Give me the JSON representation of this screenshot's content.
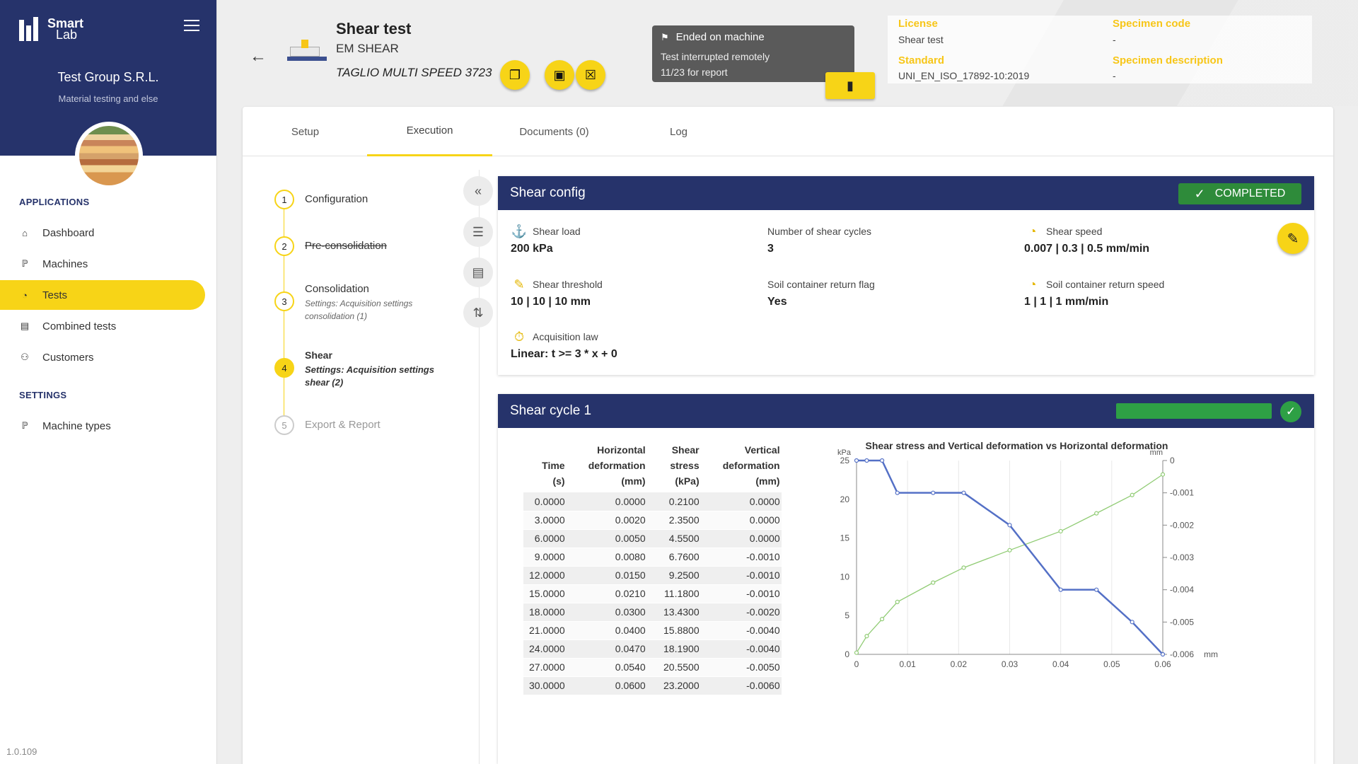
{
  "app": {
    "logo_line1": "Smart",
    "logo_line2": "Lab",
    "org_name": "Test Group S.R.L.",
    "org_sub": "Material testing and else",
    "version": "1.0.109"
  },
  "nav": {
    "section_apps": "APPLICATIONS",
    "section_settings": "SETTINGS",
    "items": [
      {
        "label": "Dashboard",
        "icon": "home-icon"
      },
      {
        "label": "Machines",
        "icon": "microscope-icon"
      },
      {
        "label": "Tests",
        "icon": "gauge-icon"
      },
      {
        "label": "Combined tests",
        "icon": "stack-icon"
      },
      {
        "label": "Customers",
        "icon": "people-icon"
      },
      {
        "label": "Machine types",
        "icon": "microscope-icon"
      }
    ]
  },
  "header": {
    "title": "Shear test",
    "type": "EM SHEAR",
    "machine": "TAGLIO MULTI SPEED 3723",
    "status_title": "Ended on machine",
    "status_line1": "Test interrupted remotely",
    "status_line2": "11/23 for report",
    "license_label": "License",
    "license_value": "Shear test",
    "standard_label": "Standard",
    "standard_value": "UNI_EN_ISO_17892-10:2019",
    "specimen_code_label": "Specimen code",
    "specimen_code_value": "-",
    "specimen_desc_label": "Specimen description",
    "specimen_desc_value": "-"
  },
  "tabs": [
    "Setup",
    "Execution",
    "Documents (0)",
    "Log"
  ],
  "steps": [
    {
      "num": "1",
      "title": "Configuration",
      "sub": ""
    },
    {
      "num": "2",
      "title": "Pre-consolidation",
      "sub": ""
    },
    {
      "num": "3",
      "title": "Consolidation",
      "sub": "Settings: Acquisition settings consolidation (1)"
    },
    {
      "num": "4",
      "title": "Shear",
      "sub": "Settings: Acquisition settings shear (2)"
    },
    {
      "num": "5",
      "title": "Export & Report",
      "sub": ""
    }
  ],
  "config": {
    "title": "Shear config",
    "status": "COMPLETED",
    "fields": [
      {
        "label": "Shear load",
        "value": "200 kPa"
      },
      {
        "label": "Number of shear cycles",
        "value": "3"
      },
      {
        "label": "Shear speed",
        "value": "0.007 | 0.3 | 0.5 mm/min"
      },
      {
        "label": "Shear threshold",
        "value": "10 | 10 | 10 mm"
      },
      {
        "label": "Soil container return flag",
        "value": "Yes"
      },
      {
        "label": "Soil container return speed",
        "value": "1 | 1 | 1 mm/min"
      },
      {
        "label": "Acquisition law",
        "value": "Linear: t >= 3 * x + 0"
      }
    ]
  },
  "cycle": {
    "title": "Shear cycle 1",
    "progress": 1.0,
    "table": {
      "headers": [
        [
          "Time",
          "(s)"
        ],
        [
          "Horizontal",
          "deformation",
          "(mm)"
        ],
        [
          "Shear",
          "stress",
          "(kPa)"
        ],
        [
          "Vertical",
          "deformation",
          "(mm)"
        ]
      ],
      "rows": [
        [
          "0.0000",
          "0.0000",
          "0.2100",
          "0.0000"
        ],
        [
          "3.0000",
          "0.0020",
          "2.3500",
          "0.0000"
        ],
        [
          "6.0000",
          "0.0050",
          "4.5500",
          "0.0000"
        ],
        [
          "9.0000",
          "0.0080",
          "6.7600",
          "-0.0010"
        ],
        [
          "12.0000",
          "0.0150",
          "9.2500",
          "-0.0010"
        ],
        [
          "15.0000",
          "0.0210",
          "11.1800",
          "-0.0010"
        ],
        [
          "18.0000",
          "0.0300",
          "13.4300",
          "-0.0020"
        ],
        [
          "21.0000",
          "0.0400",
          "15.8800",
          "-0.0040"
        ],
        [
          "24.0000",
          "0.0470",
          "18.1900",
          "-0.0040"
        ],
        [
          "27.0000",
          "0.0540",
          "20.5500",
          "-0.0050"
        ],
        [
          "30.0000",
          "0.0600",
          "23.2000",
          "-0.0060"
        ]
      ]
    }
  },
  "chart_data": {
    "type": "line",
    "title": "Shear stress and Vertical deformation vs Horizontal deformation",
    "xlabel": "mm",
    "ylabel_left": "kPa",
    "ylabel_right": "mm",
    "xlim": [
      0,
      0.06
    ],
    "ylim_left": [
      0,
      25
    ],
    "ylim_right": [
      -0.006,
      0
    ],
    "x_ticks": [
      "0",
      "0.01",
      "0.02",
      "0.03",
      "0.04",
      "0.05",
      "0.06"
    ],
    "y_left_ticks": [
      "0",
      "5",
      "10",
      "15",
      "20",
      "25"
    ],
    "y_right_ticks": [
      "0",
      "-0.001",
      "-0.002",
      "-0.003",
      "-0.004",
      "-0.005",
      "-0.006"
    ],
    "grid": true,
    "series": [
      {
        "axis": "left",
        "color": "#5470c6",
        "x": [
          0,
          0.002,
          0.005,
          0.008,
          0.015,
          0.021,
          0.03,
          0.04,
          0.047,
          0.054,
          0.06
        ],
        "values": [
          0.21,
          2.35,
          4.55,
          6.76,
          9.25,
          11.18,
          13.43,
          15.88,
          18.19,
          20.55,
          23.2
        ]
      },
      {
        "axis": "right",
        "color": "#5470c6",
        "x": [
          0,
          0.002,
          0.005,
          0.008,
          0.015,
          0.021,
          0.03,
          0.04,
          0.047,
          0.054,
          0.06
        ],
        "values": [
          0,
          0,
          0,
          -0.001,
          -0.001,
          -0.001,
          -0.002,
          -0.004,
          -0.004,
          -0.005,
          -0.006
        ]
      }
    ],
    "display_series": [
      {
        "axis": "left",
        "color": "#91cc75",
        "x": [
          0,
          0.002,
          0.005,
          0.008,
          0.015,
          0.021,
          0.03,
          0.04,
          0.047,
          0.054,
          0.06
        ],
        "values": [
          0.21,
          2.35,
          4.55,
          6.76,
          9.25,
          11.18,
          13.43,
          15.88,
          18.19,
          20.55,
          23.2
        ]
      },
      {
        "axis": "right",
        "color": "#5470c6",
        "x": [
          0,
          0.002,
          0.005,
          0.008,
          0.015,
          0.021,
          0.03,
          0.04,
          0.047,
          0.054,
          0.06
        ],
        "values": [
          0,
          0,
          0,
          -0.001,
          -0.001,
          -0.001,
          -0.002,
          -0.004,
          -0.004,
          -0.005,
          -0.006
        ]
      }
    ]
  }
}
